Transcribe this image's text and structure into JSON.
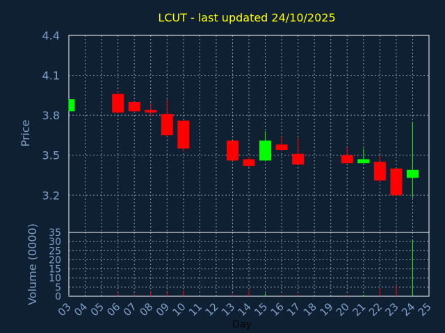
{
  "colors": {
    "background": "#0f2033",
    "title": "#ffff00",
    "axis_text": "#7fa0c8",
    "day_label": "#000000",
    "grid": "#8aa0b8",
    "frame": "#ffffff",
    "up": "#00ff00",
    "down": "#ff0000"
  },
  "chart_data": {
    "type": "candlestick",
    "title": "LCUT - last updated 24/10/2025",
    "xlabel": "Day",
    "price_panel": {
      "ylabel": "Price",
      "ylim": [
        2.92,
        4.4
      ],
      "yticks": [
        3.2,
        3.5,
        3.8,
        4.1,
        4.4
      ],
      "grid": true
    },
    "volume_panel": {
      "ylabel": "Volume (0000)",
      "ylim": [
        0,
        35
      ],
      "yticks": [
        0,
        5,
        10,
        15,
        20,
        25,
        30,
        35
      ],
      "grid": true
    },
    "x_ticks": [
      "03",
      "04",
      "05",
      "06",
      "07",
      "08",
      "09",
      "10",
      "11",
      "12",
      "13",
      "14",
      "15",
      "16",
      "17",
      "18",
      "19",
      "20",
      "21",
      "22",
      "23",
      "24",
      "25"
    ],
    "candles": [
      {
        "day": 3,
        "open": 3.83,
        "high": 3.92,
        "low": 3.83,
        "close": 3.92,
        "volume": 0.5
      },
      {
        "day": 6,
        "open": 3.96,
        "high": 3.98,
        "low": 3.81,
        "close": 3.82,
        "volume": 1.5
      },
      {
        "day": 7,
        "open": 3.9,
        "high": 3.9,
        "low": 3.82,
        "close": 3.83,
        "volume": 1.2
      },
      {
        "day": 8,
        "open": 3.84,
        "high": 3.89,
        "low": 3.79,
        "close": 3.82,
        "volume": 2.5
      },
      {
        "day": 9,
        "open": 3.81,
        "high": 3.92,
        "low": 3.64,
        "close": 3.65,
        "volume": 2.0
      },
      {
        "day": 10,
        "open": 3.76,
        "high": 3.76,
        "low": 3.53,
        "close": 3.55,
        "volume": 3.0
      },
      {
        "day": 13,
        "open": 3.61,
        "high": 3.61,
        "low": 3.46,
        "close": 3.46,
        "volume": 1.0
      },
      {
        "day": 14,
        "open": 3.47,
        "high": 3.49,
        "low": 3.41,
        "close": 3.42,
        "volume": 3.5
      },
      {
        "day": 15,
        "open": 3.46,
        "high": 3.68,
        "low": 3.46,
        "close": 3.61,
        "volume": 1.5
      },
      {
        "day": 16,
        "open": 3.58,
        "high": 3.64,
        "low": 3.53,
        "close": 3.54,
        "volume": 0.7
      },
      {
        "day": 17,
        "open": 3.51,
        "high": 3.63,
        "low": 3.43,
        "close": 3.43,
        "volume": 1.0
      },
      {
        "day": 20,
        "open": 3.5,
        "high": 3.56,
        "low": 3.44,
        "close": 3.44,
        "volume": 0.8
      },
      {
        "day": 21,
        "open": 3.44,
        "high": 3.55,
        "low": 3.44,
        "close": 3.47,
        "volume": 0.8
      },
      {
        "day": 22,
        "open": 3.45,
        "high": 3.5,
        "low": 3.3,
        "close": 3.31,
        "volume": 4.5
      },
      {
        "day": 23,
        "open": 3.4,
        "high": 3.4,
        "low": 3.19,
        "close": 3.2,
        "volume": 6.0
      },
      {
        "day": 24,
        "open": 3.33,
        "high": 3.75,
        "low": 3.18,
        "close": 3.39,
        "volume": 31.0
      }
    ]
  }
}
